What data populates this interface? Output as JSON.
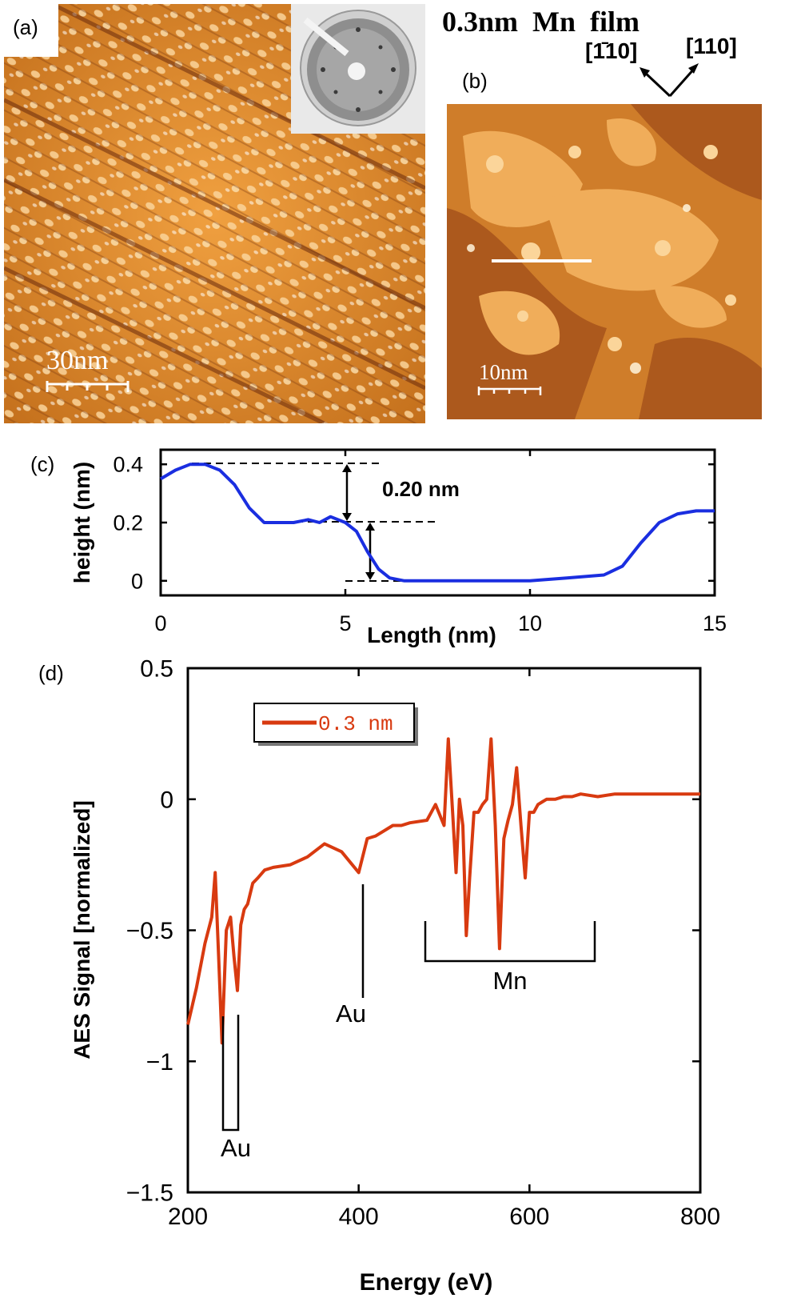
{
  "panel_a": {
    "label": "(a)",
    "scale_bar": "30nm"
  },
  "panel_b": {
    "label": "(b)",
    "title": "0.3nm  Mn  film",
    "dir_left": "[1̄10]",
    "dir_right": "[110]",
    "scale_bar": "10nm"
  },
  "panel_c": {
    "label": "(c)",
    "annotation": "0.20 nm"
  },
  "panel_d": {
    "label": "(d)",
    "annotations": {
      "au_low": "Au",
      "au_mid": "Au",
      "mn": "Mn"
    }
  },
  "colors": {
    "stm_orange": "#d98a2e",
    "profile_blue": "#1a2ee0",
    "aes_red": "#d83a10"
  },
  "chart_data": [
    {
      "type": "line",
      "panel": "c",
      "title": "",
      "xlabel": "Length (nm)",
      "ylabel": "height (nm)",
      "xlim": [
        0,
        15
      ],
      "ylim": [
        -0.05,
        0.45
      ],
      "xticks": [
        0,
        5,
        10,
        15
      ],
      "xtick_labels": [
        "0",
        "5",
        "10",
        "15"
      ],
      "yticks": [
        0,
        0.2,
        0.4
      ],
      "ytick_labels": [
        "0",
        "0.2",
        "0.4"
      ],
      "series": [
        {
          "x": [
            0,
            0.4,
            0.8,
            1.2,
            1.6,
            2.0,
            2.4,
            2.8,
            3.2,
            3.6,
            4.0,
            4.3,
            4.6,
            5.0,
            5.3,
            5.6,
            5.9,
            6.2,
            6.6,
            7.0,
            8.0,
            9.0,
            10.0,
            11.0,
            12.0,
            12.5,
            13.0,
            13.5,
            14.0,
            14.5,
            15.0
          ],
          "y": [
            0.35,
            0.38,
            0.4,
            0.4,
            0.38,
            0.33,
            0.25,
            0.2,
            0.2,
            0.2,
            0.21,
            0.2,
            0.22,
            0.2,
            0.17,
            0.1,
            0.04,
            0.01,
            0.0,
            0.0,
            0.0,
            0.0,
            0.0,
            0.01,
            0.02,
            0.05,
            0.13,
            0.2,
            0.23,
            0.24,
            0.24
          ]
        }
      ],
      "grid": false
    },
    {
      "type": "line",
      "panel": "d",
      "title": "",
      "xlabel": "Energy (eV)",
      "ylabel": "AES Signal [normalized]",
      "xlim": [
        200,
        800
      ],
      "ylim": [
        -1.5,
        0.5
      ],
      "xticks": [
        200,
        400,
        600,
        800
      ],
      "xtick_labels": [
        "200",
        "400",
        "600",
        "800"
      ],
      "yticks": [
        -1.5,
        -1,
        -0.5,
        0,
        0.5
      ],
      "ytick_labels": [
        "−1.5",
        "−1",
        "−0.5",
        "0",
        "0.5"
      ],
      "legend": {
        "placement": "top-left"
      },
      "series": [
        {
          "name": "0.3 nm",
          "x": [
            200,
            210,
            220,
            228,
            232,
            236,
            240,
            245,
            250,
            254,
            258,
            262,
            266,
            270,
            276,
            282,
            290,
            300,
            320,
            340,
            360,
            380,
            400,
            410,
            420,
            430,
            440,
            450,
            460,
            480,
            490,
            500,
            505,
            510,
            514,
            518,
            522,
            526,
            530,
            535,
            540,
            545,
            550,
            555,
            560,
            565,
            570,
            575,
            580,
            585,
            590,
            595,
            600,
            605,
            610,
            615,
            620,
            630,
            640,
            650,
            660,
            680,
            700,
            750,
            800
          ],
          "y": [
            -0.86,
            -0.72,
            -0.55,
            -0.45,
            -0.28,
            -0.6,
            -0.93,
            -0.5,
            -0.45,
            -0.6,
            -0.73,
            -0.48,
            -0.42,
            -0.4,
            -0.32,
            -0.3,
            -0.27,
            -0.26,
            -0.25,
            -0.22,
            -0.17,
            -0.2,
            -0.28,
            -0.15,
            -0.14,
            -0.12,
            -0.1,
            -0.1,
            -0.09,
            -0.08,
            -0.02,
            -0.1,
            0.23,
            -0.05,
            -0.28,
            0.0,
            -0.1,
            -0.52,
            -0.3,
            -0.05,
            -0.05,
            -0.02,
            0.0,
            0.23,
            -0.1,
            -0.57,
            -0.15,
            -0.08,
            -0.02,
            0.12,
            -0.1,
            -0.3,
            -0.05,
            -0.05,
            -0.02,
            -0.01,
            0.0,
            0.0,
            0.01,
            0.01,
            0.02,
            0.01,
            0.02,
            0.02,
            0.02
          ]
        }
      ],
      "grid": false
    }
  ]
}
